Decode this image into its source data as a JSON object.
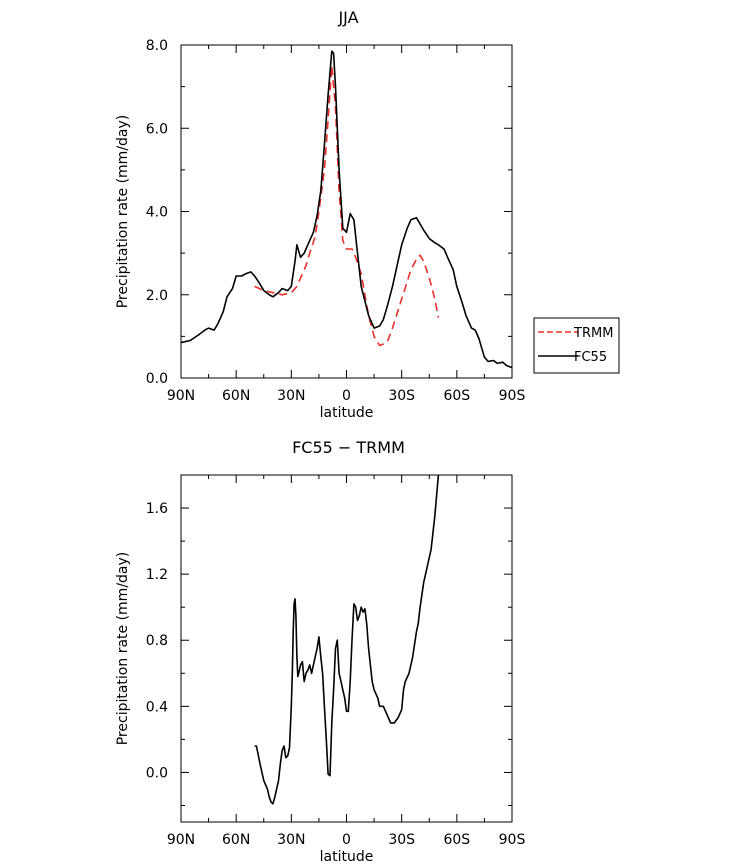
{
  "chart_data": [
    {
      "type": "line",
      "title": "JJA",
      "xlabel": "latitude",
      "ylabel": "Precipitation rate (mm/day)",
      "xlim": [
        90,
        -90
      ],
      "ylim": [
        0,
        8
      ],
      "xticks": [
        {
          "value": 90,
          "label": "90N"
        },
        {
          "value": 60,
          "label": "60N"
        },
        {
          "value": 30,
          "label": "30N"
        },
        {
          "value": 0,
          "label": "0"
        },
        {
          "value": -30,
          "label": "30S"
        },
        {
          "value": -60,
          "label": "60S"
        },
        {
          "value": -90,
          "label": "90S"
        }
      ],
      "yticks": [
        {
          "value": 0,
          "label": "0.0"
        },
        {
          "value": 2,
          "label": "2.0"
        },
        {
          "value": 4,
          "label": "4.0"
        },
        {
          "value": 6,
          "label": "6.0"
        },
        {
          "value": 8,
          "label": "8.0"
        }
      ],
      "grid": false,
      "legend_position": "outside-right",
      "series": [
        {
          "name": "TRMM",
          "color": "#e8302a",
          "dash": "dashed",
          "x": [
            50,
            45,
            40,
            35,
            30,
            27,
            25,
            22,
            20,
            17,
            15,
            12,
            10,
            8,
            6,
            4,
            2,
            0,
            -3,
            -5,
            -8,
            -12,
            -15,
            -18,
            -22,
            -25,
            -30,
            -35,
            -38,
            -40,
            -42,
            -45,
            -48,
            -50
          ],
          "y": [
            2.2,
            2.1,
            2.05,
            2.0,
            2.05,
            2.2,
            2.4,
            2.7,
            3.0,
            3.4,
            4.0,
            5.0,
            6.2,
            7.5,
            6.5,
            4.5,
            3.3,
            3.1,
            3.1,
            2.9,
            2.5,
            1.5,
            1.0,
            0.78,
            0.85,
            1.2,
            1.9,
            2.6,
            2.85,
            2.95,
            2.8,
            2.4,
            1.9,
            1.45
          ]
        },
        {
          "name": "FC55",
          "color": "#000000",
          "dash": "solid",
          "x": [
            90,
            85,
            80,
            77,
            75,
            72,
            70,
            67,
            65,
            62,
            60,
            57,
            55,
            52,
            50,
            47,
            45,
            42,
            40,
            37,
            35,
            32,
            30,
            28,
            27,
            25,
            23,
            20,
            18,
            16,
            14,
            12,
            10,
            8,
            7,
            6,
            4,
            2,
            0,
            -2,
            -4,
            -6,
            -8,
            -12,
            -15,
            -18,
            -20,
            -22,
            -25,
            -28,
            -30,
            -33,
            -35,
            -38,
            -40,
            -42,
            -45,
            -48,
            -50,
            -53,
            -55,
            -58,
            -60,
            -63,
            -65,
            -68,
            -70,
            -72,
            -75,
            -77,
            -80,
            -82,
            -85,
            -87,
            -90
          ],
          "y": [
            0.85,
            0.9,
            1.05,
            1.15,
            1.2,
            1.15,
            1.3,
            1.6,
            1.95,
            2.15,
            2.45,
            2.45,
            2.5,
            2.55,
            2.45,
            2.25,
            2.1,
            2.0,
            1.95,
            2.05,
            2.15,
            2.1,
            2.2,
            2.8,
            3.2,
            2.9,
            3.0,
            3.3,
            3.5,
            3.9,
            4.5,
            5.6,
            6.8,
            7.85,
            7.8,
            7.0,
            5.0,
            3.6,
            3.5,
            3.95,
            3.8,
            3.0,
            2.2,
            1.5,
            1.2,
            1.25,
            1.4,
            1.7,
            2.2,
            2.8,
            3.2,
            3.6,
            3.8,
            3.85,
            3.7,
            3.55,
            3.35,
            3.25,
            3.2,
            3.1,
            2.9,
            2.6,
            2.2,
            1.8,
            1.5,
            1.2,
            1.15,
            0.95,
            0.5,
            0.4,
            0.42,
            0.35,
            0.38,
            0.3,
            0.25
          ]
        }
      ]
    },
    {
      "type": "line",
      "title": "FC55 − TRMM",
      "xlabel": "latitude",
      "ylabel": "Precipitation rate (mm/day)",
      "xlim": [
        90,
        -90
      ],
      "ylim": [
        -0.3,
        1.8
      ],
      "xticks": [
        {
          "value": 90,
          "label": "90N"
        },
        {
          "value": 60,
          "label": "60N"
        },
        {
          "value": 30,
          "label": "30N"
        },
        {
          "value": 0,
          "label": "0"
        },
        {
          "value": -30,
          "label": "30S"
        },
        {
          "value": -60,
          "label": "60S"
        },
        {
          "value": -90,
          "label": "90S"
        }
      ],
      "yticks": [
        {
          "value": 0.0,
          "label": "0.0"
        },
        {
          "value": 0.4,
          "label": "0.4"
        },
        {
          "value": 0.8,
          "label": "0.8"
        },
        {
          "value": 1.2,
          "label": "1.2"
        },
        {
          "value": 1.6,
          "label": "1.6"
        }
      ],
      "grid": false,
      "series": [
        {
          "color": "#000000",
          "dash": "solid",
          "x": [
            50,
            49,
            47,
            45,
            43,
            42,
            41,
            40,
            39,
            37,
            36,
            35,
            34,
            33,
            32,
            31,
            30,
            29.5,
            29,
            28.5,
            28,
            27.5,
            27,
            26.5,
            26,
            25,
            24,
            23,
            22,
            21,
            20,
            19,
            18,
            17,
            16,
            15,
            14,
            13,
            12,
            11,
            10,
            9,
            8,
            7,
            6,
            5,
            4,
            3,
            2,
            1,
            0,
            -1,
            -2,
            -3,
            -4,
            -5,
            -6,
            -7,
            -8,
            -9,
            -10,
            -11,
            -12,
            -14,
            -15,
            -17,
            -18,
            -20,
            -22,
            -24,
            -26,
            -28,
            -30,
            -31,
            -32,
            -34,
            -36,
            -38,
            -39,
            -40,
            -42,
            -44,
            -46,
            -48,
            -50
          ],
          "y": [
            0.16,
            0.16,
            0.05,
            -0.05,
            -0.1,
            -0.15,
            -0.18,
            -0.19,
            -0.15,
            -0.05,
            0.05,
            0.13,
            0.16,
            0.09,
            0.1,
            0.15,
            0.4,
            0.6,
            0.85,
            1.02,
            1.05,
            0.95,
            0.7,
            0.58,
            0.6,
            0.65,
            0.67,
            0.55,
            0.6,
            0.62,
            0.65,
            0.6,
            0.65,
            0.7,
            0.75,
            0.82,
            0.7,
            0.6,
            0.4,
            0.2,
            -0.01,
            -0.02,
            0.3,
            0.5,
            0.75,
            0.8,
            0.6,
            0.55,
            0.5,
            0.45,
            0.37,
            0.37,
            0.55,
            0.8,
            1.02,
            1.0,
            0.92,
            0.95,
            1.0,
            0.97,
            0.99,
            0.9,
            0.75,
            0.55,
            0.5,
            0.45,
            0.4,
            0.4,
            0.35,
            0.3,
            0.3,
            0.33,
            0.38,
            0.5,
            0.55,
            0.6,
            0.7,
            0.85,
            0.9,
            1.0,
            1.15,
            1.25,
            1.35,
            1.55,
            1.8
          ]
        }
      ]
    }
  ]
}
